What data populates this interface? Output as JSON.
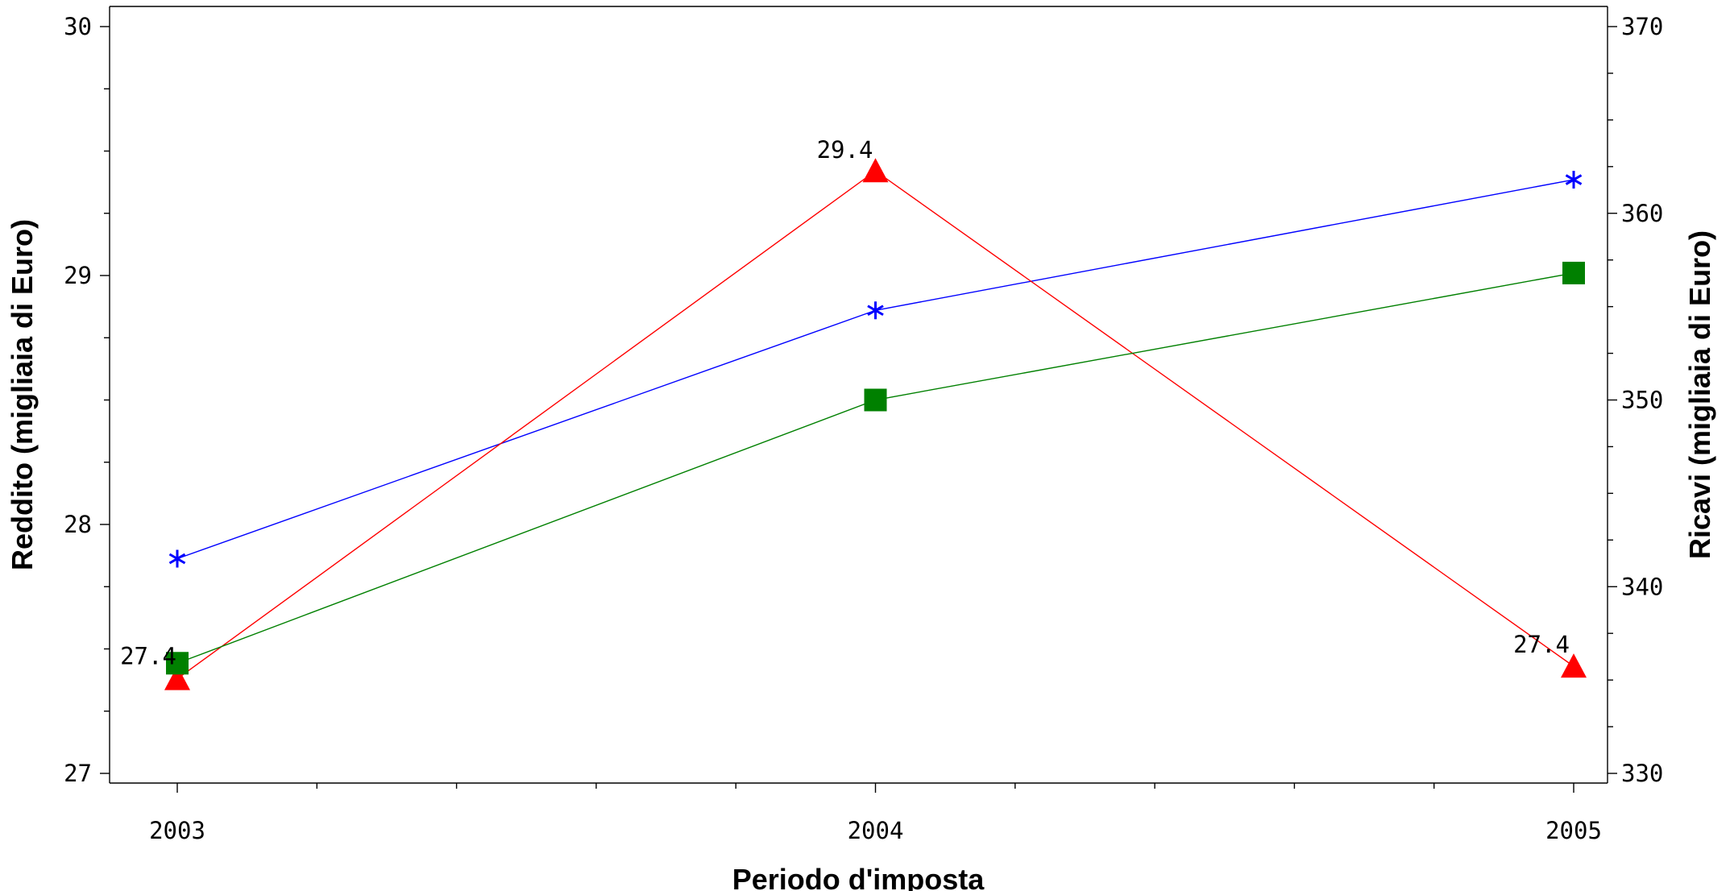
{
  "chart_data": {
    "type": "line",
    "title": "",
    "xlabel": "Periodo d'imposta",
    "ylabel": "Reddito (migliaia di Euro)",
    "y2label": "Ricavi (migliaia di Euro)",
    "x": [
      2003,
      2004,
      2005
    ],
    "x_tick_labels": [
      "2003",
      "2004",
      "2005"
    ],
    "ylim": [
      27,
      30
    ],
    "y_ticks": [
      27,
      28,
      29,
      30
    ],
    "y_tick_labels": [
      "27",
      "28",
      "29",
      "30"
    ],
    "y2lim": [
      330,
      370
    ],
    "y2_ticks": [
      330,
      340,
      350,
      360,
      370
    ],
    "y2_tick_labels": [
      "330",
      "340",
      "350",
      "360",
      "370"
    ],
    "grid": false,
    "series": [
      {
        "axis": "left",
        "marker": "triangle",
        "color": "#ff0000",
        "values": [
          27.4,
          29.4,
          27.4
        ],
        "display_values": [
          27.38,
          29.42,
          27.43
        ],
        "data_labels": [
          "27.4",
          "29.4",
          "27.4"
        ]
      },
      {
        "axis": "right",
        "marker": "star",
        "color": "#0000ff",
        "values": [
          341.5,
          354.8,
          361.8
        ]
      },
      {
        "axis": "right",
        "marker": "square",
        "color": "#008000",
        "values": [
          335.9,
          350.0,
          356.8
        ]
      }
    ]
  }
}
